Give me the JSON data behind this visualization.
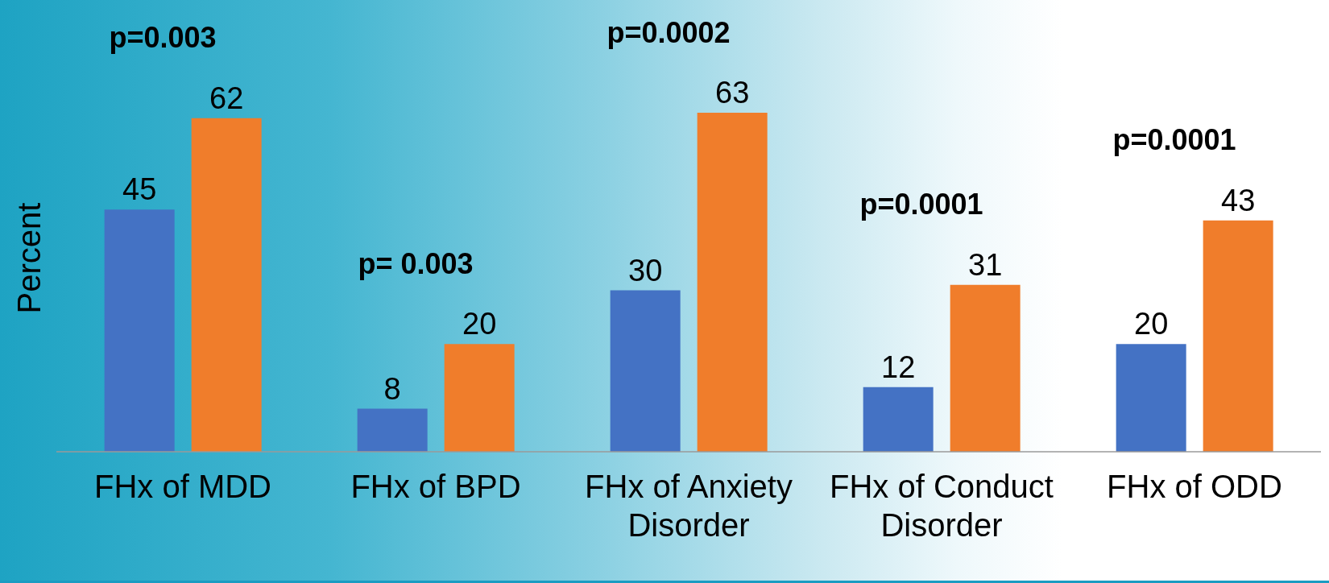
{
  "chart_data": {
    "type": "bar",
    "ylabel": "Percent",
    "categories": [
      "FHx of MDD",
      "FHx of BPD",
      "FHx of Anxiety Disorder",
      "FHx of Conduct Disorder",
      "FHx of ODD"
    ],
    "series": [
      {
        "color": "#4472c4",
        "values": [
          45,
          8,
          30,
          12,
          20
        ]
      },
      {
        "color": "#f07d2b",
        "values": [
          62,
          20,
          63,
          31,
          43
        ]
      }
    ],
    "data_labels": true,
    "tick_labels": "x",
    "annotations": [
      "p=0.003",
      "p= 0.003",
      "p=0.0002",
      "p=0.0001",
      "p=0.0001"
    ]
  }
}
